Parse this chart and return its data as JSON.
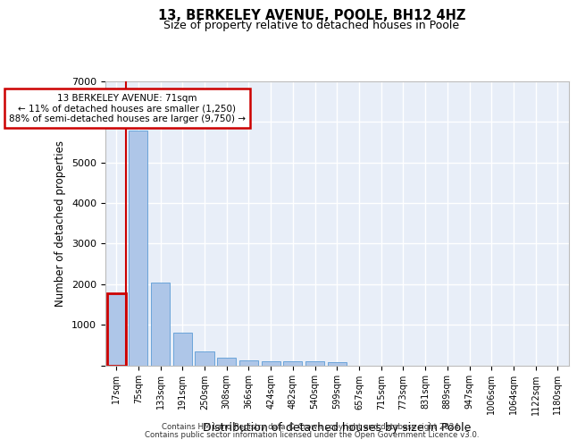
{
  "title": "13, BERKELEY AVENUE, POOLE, BH12 4HZ",
  "subtitle": "Size of property relative to detached houses in Poole",
  "xlabel": "Distribution of detached houses by size in Poole",
  "ylabel": "Number of detached properties",
  "footnote1": "Contains HM Land Registry data © Crown copyright and database right 2024.",
  "footnote2": "Contains public sector information licensed under the Open Government Licence v3.0.",
  "bar_color": "#aec6e8",
  "bar_edge_color": "#5b9bd5",
  "highlight_color": "#cc0000",
  "annotation_box_color": "#cc0000",
  "background_color": "#e8eef8",
  "tick_labels": [
    "17sqm",
    "75sqm",
    "133sqm",
    "191sqm",
    "250sqm",
    "308sqm",
    "366sqm",
    "424sqm",
    "482sqm",
    "540sqm",
    "599sqm",
    "657sqm",
    "715sqm",
    "773sqm",
    "831sqm",
    "889sqm",
    "947sqm",
    "1006sqm",
    "1064sqm",
    "1122sqm",
    "1180sqm"
  ],
  "bar_values": [
    1780,
    5780,
    2050,
    800,
    340,
    185,
    120,
    105,
    100,
    95,
    80,
    0,
    0,
    0,
    0,
    0,
    0,
    0,
    0,
    0,
    0
  ],
  "ylim": [
    0,
    7000
  ],
  "yticks": [
    0,
    1000,
    2000,
    3000,
    4000,
    5000,
    6000,
    7000
  ],
  "property_label": "13 BERKELEY AVENUE: 71sqm",
  "smaller_pct": 11,
  "smaller_count": 1250,
  "larger_pct": 88,
  "larger_count": 9750,
  "highlight_bar_index": 0
}
